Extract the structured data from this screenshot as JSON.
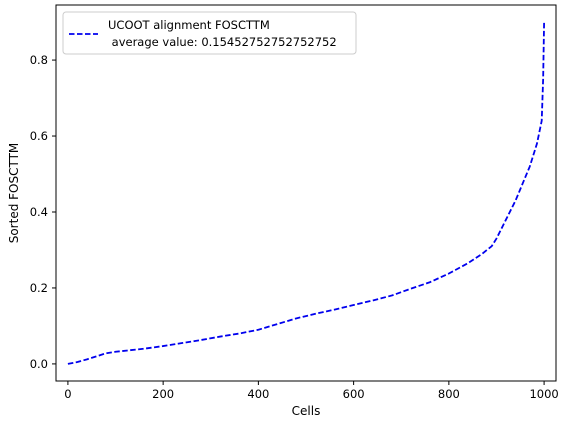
{
  "chart_data": {
    "type": "line",
    "xlabel": "Cells",
    "ylabel": "Sorted FOSCTTM",
    "xlim": [
      -25,
      1025
    ],
    "ylim": [
      -0.045,
      0.945
    ],
    "xticks": [
      0,
      200,
      400,
      600,
      800,
      1000
    ],
    "yticks": [
      0.0,
      0.2,
      0.4,
      0.6,
      0.8
    ],
    "ytick_labels": [
      "0.0",
      "0.2",
      "0.4",
      "0.6",
      "0.8"
    ],
    "grid": false,
    "legend_position": "top-left",
    "series": [
      {
        "name": "UCOOT alignment FOSCTTM",
        "legend_line2": " average value: 0.15452752752752752",
        "color": "#0000ee",
        "line_style": "dashed",
        "x": [
          0,
          20,
          40,
          60,
          80,
          100,
          130,
          160,
          200,
          240,
          280,
          320,
          360,
          400,
          440,
          480,
          520,
          560,
          600,
          640,
          680,
          720,
          760,
          800,
          840,
          870,
          890,
          900,
          920,
          940,
          960,
          970,
          980,
          985,
          990,
          995,
          998,
          1000
        ],
        "y": [
          0.0,
          0.005,
          0.012,
          0.02,
          0.028,
          0.032,
          0.036,
          0.04,
          0.047,
          0.055,
          0.063,
          0.072,
          0.08,
          0.09,
          0.105,
          0.12,
          0.132,
          0.143,
          0.155,
          0.167,
          0.18,
          0.198,
          0.215,
          0.238,
          0.265,
          0.29,
          0.31,
          0.33,
          0.38,
          0.43,
          0.49,
          0.52,
          0.56,
          0.58,
          0.61,
          0.64,
          0.75,
          0.9
        ]
      }
    ]
  }
}
